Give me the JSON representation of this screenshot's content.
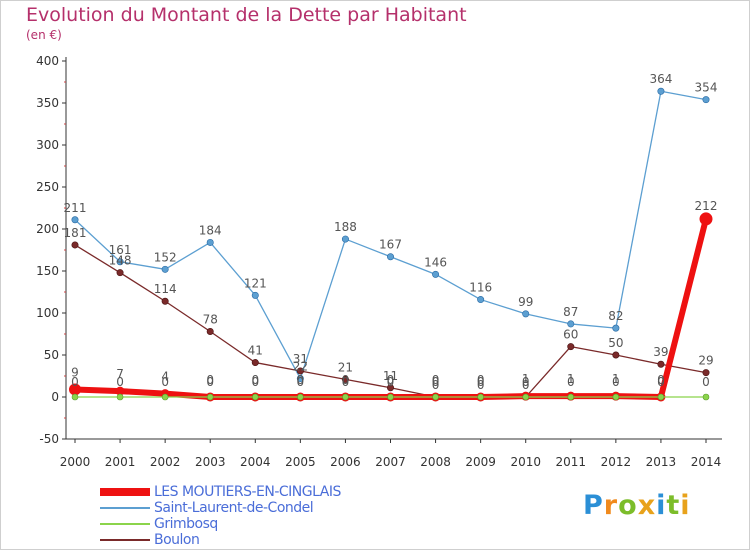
{
  "title": "Evolution du Montant de la Dette par Habitant",
  "unit": "(en €)",
  "logo": "Proxiti",
  "logo_colors": [
    "#2b8fd6",
    "#f08a1d",
    "#7cbd2a",
    "#e8a21b",
    "#2b8fd6",
    "#7cbd2a",
    "#e8a21b"
  ],
  "chart_data": {
    "type": "line",
    "x": [
      "2000",
      "2001",
      "2002",
      "2003",
      "2004",
      "2005",
      "2006",
      "2007",
      "2008",
      "2009",
      "2010",
      "2011",
      "2012",
      "2013",
      "2014"
    ],
    "ylim": [
      -50,
      400
    ],
    "yticks": [
      "-50",
      "0",
      "50",
      "100",
      "150",
      "200",
      "250",
      "300",
      "350",
      "400"
    ],
    "grid": false,
    "legend_position": "bottom-left",
    "series": [
      {
        "name": "Saint-Laurent-de-Condel",
        "color": "#5c9fd1",
        "values": [
          211,
          161,
          152,
          184,
          121,
          22,
          188,
          167,
          146,
          116,
          99,
          87,
          82,
          364,
          354
        ],
        "labels": [
          "211",
          "161",
          "152",
          "184",
          "121",
          "22",
          "188",
          "167",
          "146",
          "116",
          "99",
          "87",
          "82",
          "364",
          "354"
        ]
      },
      {
        "name": "Boulon",
        "color": "#7a2a2a",
        "values": [
          181,
          148,
          114,
          78,
          41,
          31,
          21,
          11,
          0,
          0,
          0,
          60,
          50,
          39,
          29
        ],
        "labels": [
          "181",
          "148",
          "114",
          "78",
          "41",
          "31",
          "21",
          "11",
          "0",
          "0",
          "0",
          "60",
          "50",
          "39",
          "29"
        ]
      },
      {
        "name": "Grimbosq",
        "color": "#8bd44b",
        "values": [
          0,
          0,
          0,
          0,
          0,
          0,
          0,
          0,
          0,
          0,
          0,
          0,
          0,
          0,
          0
        ],
        "labels": [
          "0",
          "0",
          "0",
          "0",
          "0",
          "0",
          "0",
          "0",
          "0",
          "0",
          "0",
          "0",
          "0",
          "0",
          "0"
        ]
      },
      {
        "name": "LES MOUTIERS-EN-CINGLAIS",
        "color": "#ee1111",
        "values": [
          9,
          7,
          4,
          0,
          0,
          0,
          0,
          0,
          0,
          0,
          1,
          1,
          1,
          0,
          212
        ],
        "labels": [
          "9",
          "7",
          "4",
          "0",
          "0",
          "0",
          "0",
          "0",
          "0",
          "0",
          "1",
          "1",
          "1",
          "0",
          "212"
        ]
      }
    ],
    "legend_order": [
      "LES MOUTIERS-EN-CINGLAIS",
      "Saint-Laurent-de-Condel",
      "Grimbosq",
      "Boulon"
    ]
  }
}
